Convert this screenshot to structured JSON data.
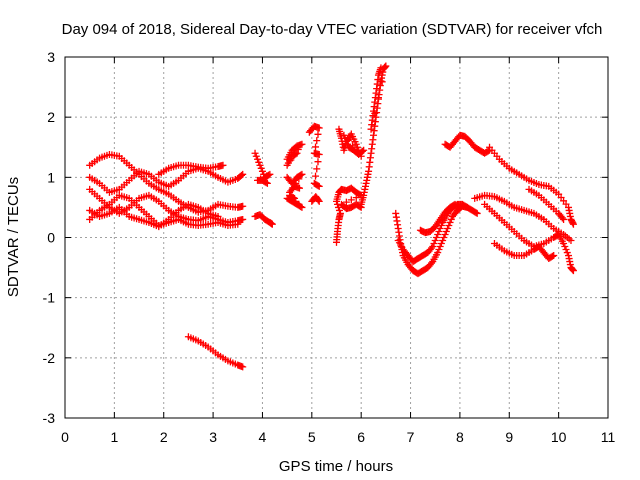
{
  "chart_data": {
    "type": "scatter",
    "title": "Day 094 of 2018, Sidereal Day-to-day VTEC variation (SDTVAR) for receiver vfch",
    "xlabel": "GPS time / hours",
    "ylabel": "SDTVAR / TECUs",
    "xlim": [
      0,
      11
    ],
    "ylim": [
      -3,
      3
    ],
    "x_ticks": [
      "0",
      "1",
      "2",
      "3",
      "4",
      "5",
      "6",
      "7",
      "8",
      "9",
      "10",
      "11"
    ],
    "y_ticks": [
      "-3",
      "-2",
      "-1",
      "0",
      "1",
      "2",
      "3"
    ],
    "grid": true,
    "marker": "plus",
    "color": "#ff0000",
    "series": [
      {
        "name": "s1",
        "points": [
          [
            0.5,
            1.2
          ],
          [
            0.7,
            1.32
          ],
          [
            0.9,
            1.38
          ],
          [
            1.1,
            1.35
          ],
          [
            1.3,
            1.2
          ],
          [
            1.5,
            1.05
          ],
          [
            1.7,
            0.9
          ],
          [
            1.9,
            0.8
          ],
          [
            2.1,
            0.72
          ],
          [
            2.3,
            0.6
          ],
          [
            2.5,
            0.5
          ],
          [
            2.7,
            0.42
          ],
          [
            2.9,
            0.45
          ],
          [
            3.1,
            0.55
          ],
          [
            3.3,
            0.52
          ],
          [
            3.5,
            0.5
          ],
          [
            3.6,
            0.52
          ]
        ]
      },
      {
        "name": "s2",
        "points": [
          [
            0.5,
            1.0
          ],
          [
            0.7,
            0.9
          ],
          [
            0.9,
            0.75
          ],
          [
            1.1,
            0.8
          ],
          [
            1.3,
            0.95
          ],
          [
            1.5,
            1.1
          ],
          [
            1.7,
            1.05
          ],
          [
            1.9,
            0.92
          ],
          [
            2.1,
            0.85
          ],
          [
            2.3,
            0.95
          ],
          [
            2.5,
            1.1
          ],
          [
            2.7,
            1.15
          ],
          [
            2.9,
            1.1
          ],
          [
            3.1,
            1.0
          ],
          [
            3.3,
            0.92
          ],
          [
            3.5,
            0.98
          ],
          [
            3.6,
            1.05
          ]
        ]
      },
      {
        "name": "s3",
        "points": [
          [
            0.5,
            0.8
          ],
          [
            0.7,
            0.65
          ],
          [
            0.9,
            0.5
          ],
          [
            1.1,
            0.4
          ],
          [
            1.3,
            0.5
          ],
          [
            1.5,
            0.65
          ],
          [
            1.7,
            0.7
          ],
          [
            1.9,
            0.6
          ],
          [
            2.1,
            0.45
          ],
          [
            2.3,
            0.35
          ],
          [
            2.5,
            0.3
          ],
          [
            2.7,
            0.28
          ],
          [
            2.9,
            0.35
          ],
          [
            3.1,
            0.3
          ],
          [
            3.3,
            0.25
          ],
          [
            3.5,
            0.28
          ],
          [
            3.6,
            0.3
          ]
        ]
      },
      {
        "name": "s4",
        "points": [
          [
            0.5,
            0.3
          ],
          [
            0.7,
            0.45
          ],
          [
            0.9,
            0.55
          ],
          [
            1.1,
            0.7
          ],
          [
            1.3,
            0.65
          ],
          [
            1.5,
            0.5
          ],
          [
            1.7,
            0.35
          ],
          [
            1.9,
            0.2
          ],
          [
            2.1,
            0.25
          ],
          [
            2.3,
            0.3
          ],
          [
            2.5,
            0.22
          ],
          [
            2.7,
            0.2
          ],
          [
            2.9,
            0.22
          ],
          [
            3.1,
            0.25
          ],
          [
            3.3,
            0.2
          ],
          [
            3.5,
            0.22
          ]
        ]
      },
      {
        "name": "s5",
        "points": [
          [
            0.5,
            0.45
          ],
          [
            0.7,
            0.35
          ],
          [
            0.9,
            0.4
          ],
          [
            1.1,
            0.5
          ],
          [
            1.3,
            0.35
          ],
          [
            1.5,
            0.3
          ],
          [
            1.7,
            0.25
          ],
          [
            1.9,
            0.18
          ],
          [
            2.1,
            0.3
          ],
          [
            2.3,
            0.45
          ],
          [
            2.5,
            0.55
          ],
          [
            2.7,
            0.5
          ],
          [
            2.9,
            0.4
          ],
          [
            3.1,
            0.35
          ]
        ]
      },
      {
        "name": "s6",
        "points": [
          [
            1.9,
            1.05
          ],
          [
            2.1,
            1.15
          ],
          [
            2.3,
            1.2
          ],
          [
            2.5,
            1.2
          ],
          [
            2.7,
            1.17
          ],
          [
            2.9,
            1.15
          ],
          [
            3.1,
            1.18
          ],
          [
            3.2,
            1.2
          ]
        ]
      },
      {
        "name": "s7",
        "points": [
          [
            2.5,
            -1.65
          ],
          [
            2.7,
            -1.72
          ],
          [
            2.9,
            -1.82
          ],
          [
            3.1,
            -1.95
          ],
          [
            3.3,
            -2.05
          ],
          [
            3.5,
            -2.12
          ],
          [
            3.6,
            -2.15
          ]
        ]
      },
      {
        "name": "s8",
        "points": [
          [
            3.85,
            1.4
          ],
          [
            3.95,
            1.2
          ],
          [
            4.05,
            1.0
          ],
          [
            4.15,
            1.05
          ],
          [
            3.9,
            0.95
          ],
          [
            4.0,
            0.95
          ],
          [
            4.1,
            0.9
          ]
        ]
      },
      {
        "name": "s9",
        "points": [
          [
            3.85,
            0.35
          ],
          [
            3.95,
            0.38
          ],
          [
            4.05,
            0.3
          ],
          [
            4.15,
            0.25
          ],
          [
            4.2,
            0.22
          ]
        ]
      },
      {
        "name": "s10",
        "points": [
          [
            4.5,
            1.3
          ],
          [
            4.6,
            1.45
          ],
          [
            4.7,
            1.52
          ],
          [
            4.8,
            1.55
          ],
          [
            4.5,
            1.2
          ],
          [
            4.6,
            1.35
          ],
          [
            4.7,
            1.4
          ]
        ]
      },
      {
        "name": "s11",
        "points": [
          [
            4.5,
            1.0
          ],
          [
            4.6,
            0.9
          ],
          [
            4.7,
            1.0
          ],
          [
            4.8,
            1.05
          ],
          [
            4.55,
            0.75
          ],
          [
            4.65,
            0.85
          ],
          [
            4.75,
            0.82
          ]
        ]
      },
      {
        "name": "s12",
        "points": [
          [
            4.5,
            0.65
          ],
          [
            4.6,
            0.6
          ],
          [
            4.7,
            0.55
          ],
          [
            4.8,
            0.5
          ],
          [
            4.55,
            0.7
          ],
          [
            4.65,
            0.65
          ]
        ]
      },
      {
        "name": "s13",
        "points": [
          [
            4.95,
            1.75
          ],
          [
            5.05,
            1.85
          ],
          [
            5.15,
            1.82
          ],
          [
            5.05,
            1.4
          ],
          [
            5.15,
            1.38
          ],
          [
            5.05,
            0.9
          ],
          [
            5.15,
            0.85
          ]
        ]
      },
      {
        "name": "s14",
        "points": [
          [
            5.0,
            0.6
          ],
          [
            5.08,
            0.68
          ],
          [
            5.15,
            0.6
          ]
        ]
      },
      {
        "name": "s15",
        "points": [
          [
            5.5,
            -0.08
          ],
          [
            5.52,
            0.1
          ],
          [
            5.55,
            0.3
          ],
          [
            5.58,
            0.4
          ],
          [
            5.5,
            0.6
          ],
          [
            5.55,
            0.75
          ],
          [
            5.6,
            0.8
          ],
          [
            5.7,
            0.78
          ],
          [
            5.8,
            0.82
          ],
          [
            5.9,
            0.75
          ],
          [
            6.0,
            0.7
          ],
          [
            5.6,
            0.55
          ],
          [
            5.7,
            0.48
          ],
          [
            5.8,
            0.5
          ],
          [
            5.9,
            0.55
          ],
          [
            6.0,
            0.5
          ]
        ]
      },
      {
        "name": "s16",
        "points": [
          [
            5.55,
            1.8
          ],
          [
            5.6,
            1.65
          ],
          [
            5.65,
            1.45
          ],
          [
            5.7,
            1.6
          ],
          [
            5.8,
            1.72
          ],
          [
            5.9,
            1.55
          ],
          [
            6.0,
            1.35
          ],
          [
            5.65,
            1.7
          ],
          [
            5.75,
            1.5
          ],
          [
            5.85,
            1.45
          ],
          [
            5.95,
            1.38
          ],
          [
            6.05,
            1.45
          ]
        ]
      },
      {
        "name": "s17",
        "points": [
          [
            6.0,
            0.55
          ],
          [
            6.05,
            0.7
          ],
          [
            6.1,
            0.9
          ],
          [
            6.15,
            1.1
          ],
          [
            6.2,
            1.4
          ],
          [
            6.25,
            1.7
          ],
          [
            6.3,
            2.0
          ],
          [
            6.35,
            2.3
          ],
          [
            6.4,
            2.6
          ],
          [
            6.45,
            2.8
          ],
          [
            6.5,
            2.85
          ],
          [
            6.2,
            1.8
          ],
          [
            6.25,
            2.1
          ],
          [
            6.3,
            2.4
          ],
          [
            6.35,
            2.7
          ],
          [
            6.4,
            2.82
          ]
        ]
      },
      {
        "name": "s18",
        "points": [
          [
            6.7,
            0.4
          ],
          [
            6.75,
            0.15
          ],
          [
            6.8,
            -0.1
          ],
          [
            6.85,
            -0.3
          ],
          [
            6.95,
            -0.45
          ],
          [
            7.05,
            -0.55
          ],
          [
            7.15,
            -0.6
          ],
          [
            7.25,
            -0.55
          ],
          [
            7.35,
            -0.5
          ],
          [
            7.45,
            -0.4
          ],
          [
            7.55,
            -0.25
          ],
          [
            7.65,
            -0.05
          ],
          [
            7.75,
            0.15
          ],
          [
            7.85,
            0.35
          ],
          [
            7.95,
            0.45
          ],
          [
            8.05,
            0.52
          ],
          [
            8.15,
            0.5
          ]
        ]
      },
      {
        "name": "s19",
        "points": [
          [
            6.75,
            -0.05
          ],
          [
            6.85,
            -0.2
          ],
          [
            6.95,
            -0.3
          ],
          [
            7.05,
            -0.4
          ],
          [
            7.15,
            -0.35
          ],
          [
            7.25,
            -0.3
          ],
          [
            7.35,
            -0.25
          ],
          [
            7.45,
            -0.15
          ],
          [
            7.55,
            0.05
          ],
          [
            7.65,
            0.25
          ],
          [
            7.75,
            0.4
          ],
          [
            7.85,
            0.5
          ],
          [
            7.95,
            0.55
          ],
          [
            8.05,
            0.55
          ],
          [
            8.15,
            0.5
          ],
          [
            8.25,
            0.45
          ],
          [
            8.35,
            0.4
          ]
        ]
      },
      {
        "name": "s20",
        "points": [
          [
            7.2,
            0.12
          ],
          [
            7.3,
            0.08
          ],
          [
            7.4,
            0.1
          ],
          [
            7.5,
            0.18
          ],
          [
            7.6,
            0.3
          ],
          [
            7.7,
            0.42
          ],
          [
            7.8,
            0.5
          ],
          [
            7.9,
            0.55
          ]
        ]
      },
      {
        "name": "s21",
        "points": [
          [
            7.7,
            1.55
          ],
          [
            7.8,
            1.5
          ],
          [
            7.9,
            1.6
          ],
          [
            8.0,
            1.7
          ],
          [
            8.1,
            1.68
          ],
          [
            8.2,
            1.6
          ],
          [
            8.3,
            1.5
          ],
          [
            8.4,
            1.45
          ],
          [
            8.5,
            1.4
          ],
          [
            8.6,
            1.45
          ]
        ]
      },
      {
        "name": "s22",
        "points": [
          [
            8.6,
            1.5
          ],
          [
            8.8,
            1.3
          ],
          [
            9.0,
            1.15
          ],
          [
            9.2,
            1.05
          ],
          [
            9.4,
            0.95
          ],
          [
            9.6,
            0.88
          ],
          [
            9.8,
            0.85
          ],
          [
            10.0,
            0.72
          ],
          [
            10.2,
            0.5
          ],
          [
            10.25,
            0.3
          ],
          [
            10.3,
            0.22
          ]
        ]
      },
      {
        "name": "s23",
        "points": [
          [
            8.3,
            0.65
          ],
          [
            8.5,
            0.7
          ],
          [
            8.7,
            0.68
          ],
          [
            8.9,
            0.6
          ],
          [
            9.1,
            0.5
          ],
          [
            9.3,
            0.45
          ],
          [
            9.5,
            0.4
          ],
          [
            9.7,
            0.3
          ],
          [
            9.9,
            0.15
          ],
          [
            10.1,
            0.05
          ],
          [
            10.25,
            -0.05
          ]
        ]
      },
      {
        "name": "s24",
        "points": [
          [
            8.5,
            0.55
          ],
          [
            8.7,
            0.4
          ],
          [
            8.9,
            0.25
          ],
          [
            9.1,
            0.1
          ],
          [
            9.3,
            -0.05
          ],
          [
            9.5,
            -0.15
          ],
          [
            9.7,
            -0.1
          ],
          [
            9.9,
            0.0
          ],
          [
            10.0,
            0.05
          ],
          [
            10.1,
            -0.1
          ],
          [
            10.2,
            -0.3
          ],
          [
            10.25,
            -0.5
          ],
          [
            10.3,
            -0.55
          ]
        ]
      },
      {
        "name": "s25",
        "points": [
          [
            8.7,
            -0.1
          ],
          [
            8.9,
            -0.22
          ],
          [
            9.1,
            -0.3
          ],
          [
            9.3,
            -0.3
          ],
          [
            9.5,
            -0.2
          ],
          [
            9.6,
            -0.15
          ],
          [
            9.7,
            -0.25
          ],
          [
            9.8,
            -0.35
          ],
          [
            9.9,
            -0.3
          ]
        ]
      },
      {
        "name": "s26",
        "points": [
          [
            9.4,
            0.8
          ],
          [
            9.6,
            0.7
          ],
          [
            9.8,
            0.55
          ],
          [
            10.0,
            0.4
          ],
          [
            10.1,
            0.3
          ]
        ]
      }
    ]
  }
}
